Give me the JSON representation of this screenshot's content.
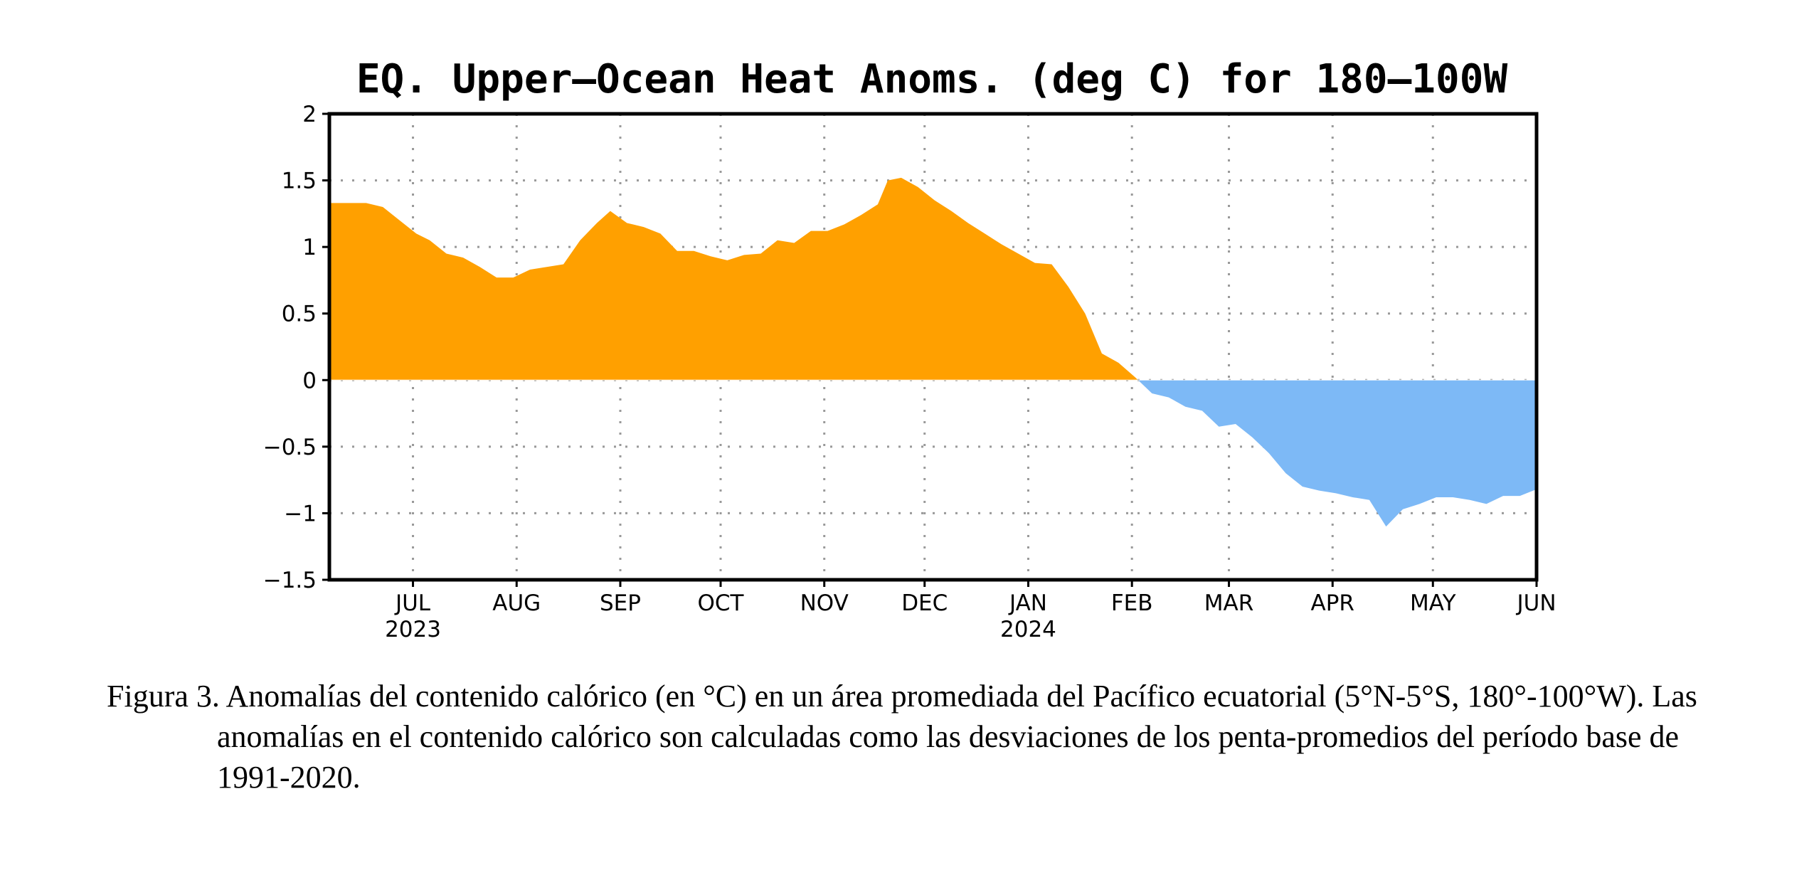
{
  "caption": "Figura 3. Anomalías del contenido calórico (en °C) en un área promediada del Pacífico ecuatorial (5°N-5°S, 180°-100°W). Las anomalías en el contenido calórico son calculadas como las desviaciones de los penta-promedios del período base de 1991-2020.",
  "colors": {
    "positive": "#FFA000",
    "negative": "#7DB9F6",
    "grid": "#999999"
  },
  "chart_data": {
    "type": "area",
    "title": "EQ. Upper–Ocean Heat Anoms. (deg C) for 180–100W",
    "xlabel": "",
    "ylabel": "",
    "ylim": [
      -1.5,
      2
    ],
    "xlim": [
      "2023-06-06",
      "2024-06-01"
    ],
    "grid": true,
    "legend": "none",
    "yticks": [
      {
        "value": 2,
        "label": "2"
      },
      {
        "value": 1.5,
        "label": "1.5"
      },
      {
        "value": 1,
        "label": "1"
      },
      {
        "value": 0.5,
        "label": "0.5"
      },
      {
        "value": 0,
        "label": "0"
      },
      {
        "value": -0.5,
        "label": "−0.5"
      },
      {
        "value": -1,
        "label": "−1"
      },
      {
        "value": -1.5,
        "label": "−1.5"
      }
    ],
    "xticks": [
      {
        "date": "2023-07-01",
        "label": "JUL",
        "year": "2023"
      },
      {
        "date": "2023-08-01",
        "label": "AUG",
        "year": ""
      },
      {
        "date": "2023-09-01",
        "label": "SEP",
        "year": ""
      },
      {
        "date": "2023-10-01",
        "label": "OCT",
        "year": ""
      },
      {
        "date": "2023-11-01",
        "label": "NOV",
        "year": ""
      },
      {
        "date": "2023-12-01",
        "label": "DEC",
        "year": ""
      },
      {
        "date": "2024-01-01",
        "label": "JAN",
        "year": "2024"
      },
      {
        "date": "2024-02-01",
        "label": "FEB",
        "year": ""
      },
      {
        "date": "2024-03-01",
        "label": "MAR",
        "year": ""
      },
      {
        "date": "2024-04-01",
        "label": "APR",
        "year": ""
      },
      {
        "date": "2024-05-01",
        "label": "MAY",
        "year": ""
      },
      {
        "date": "2024-06-01",
        "label": "JUN",
        "year": ""
      }
    ],
    "series": [
      {
        "x": [
          "2023-06-06",
          "2023-06-17",
          "2023-06-22",
          "2023-06-27",
          "2023-07-02",
          "2023-07-06",
          "2023-07-11",
          "2023-07-16",
          "2023-07-21",
          "2023-07-26",
          "2023-07-31",
          "2023-08-05",
          "2023-08-10",
          "2023-08-15",
          "2023-08-20",
          "2023-08-25",
          "2023-08-29",
          "2023-09-03",
          "2023-09-08",
          "2023-09-13",
          "2023-09-18",
          "2023-09-23",
          "2023-09-28",
          "2023-10-03",
          "2023-10-08",
          "2023-10-13",
          "2023-10-18",
          "2023-10-23",
          "2023-10-28",
          "2023-11-02",
          "2023-11-07",
          "2023-11-12",
          "2023-11-17",
          "2023-11-20",
          "2023-11-24",
          "2023-11-29",
          "2023-12-04",
          "2023-12-09",
          "2023-12-14",
          "2023-12-19",
          "2023-12-24",
          "2023-12-29",
          "2024-01-03",
          "2024-01-08",
          "2024-01-13",
          "2024-01-18",
          "2024-01-23",
          "2024-01-28",
          "2024-02-02",
          "2024-02-07",
          "2024-02-12",
          "2024-02-17",
          "2024-02-22",
          "2024-02-27",
          "2024-03-03",
          "2024-03-08",
          "2024-03-13",
          "2024-03-18",
          "2024-03-23",
          "2024-03-28",
          "2024-04-02",
          "2024-04-07",
          "2024-04-12",
          "2024-04-17",
          "2024-04-22",
          "2024-04-27",
          "2024-05-02",
          "2024-05-07",
          "2024-05-12",
          "2024-05-17",
          "2024-05-22",
          "2024-05-27",
          "2024-06-01"
        ],
        "values": [
          1.33,
          1.33,
          1.3,
          1.2,
          1.1,
          1.05,
          0.95,
          0.92,
          0.85,
          0.77,
          0.77,
          0.83,
          0.85,
          0.87,
          1.05,
          1.18,
          1.27,
          1.18,
          1.15,
          1.1,
          0.97,
          0.97,
          0.93,
          0.9,
          0.94,
          0.95,
          1.05,
          1.03,
          1.12,
          1.12,
          1.17,
          1.24,
          1.32,
          1.5,
          1.52,
          1.45,
          1.35,
          1.27,
          1.18,
          1.1,
          1.02,
          0.95,
          0.88,
          0.87,
          0.7,
          0.5,
          0.2,
          0.13,
          0.02,
          -0.1,
          -0.13,
          -0.2,
          -0.23,
          -0.35,
          -0.33,
          -0.43,
          -0.55,
          -0.7,
          -0.8,
          -0.83,
          -0.85,
          -0.88,
          -0.9,
          -1.1,
          -0.97,
          -0.93,
          -0.88,
          -0.88,
          -0.9,
          -0.93,
          -0.87,
          -0.87,
          -0.82
        ]
      }
    ]
  }
}
